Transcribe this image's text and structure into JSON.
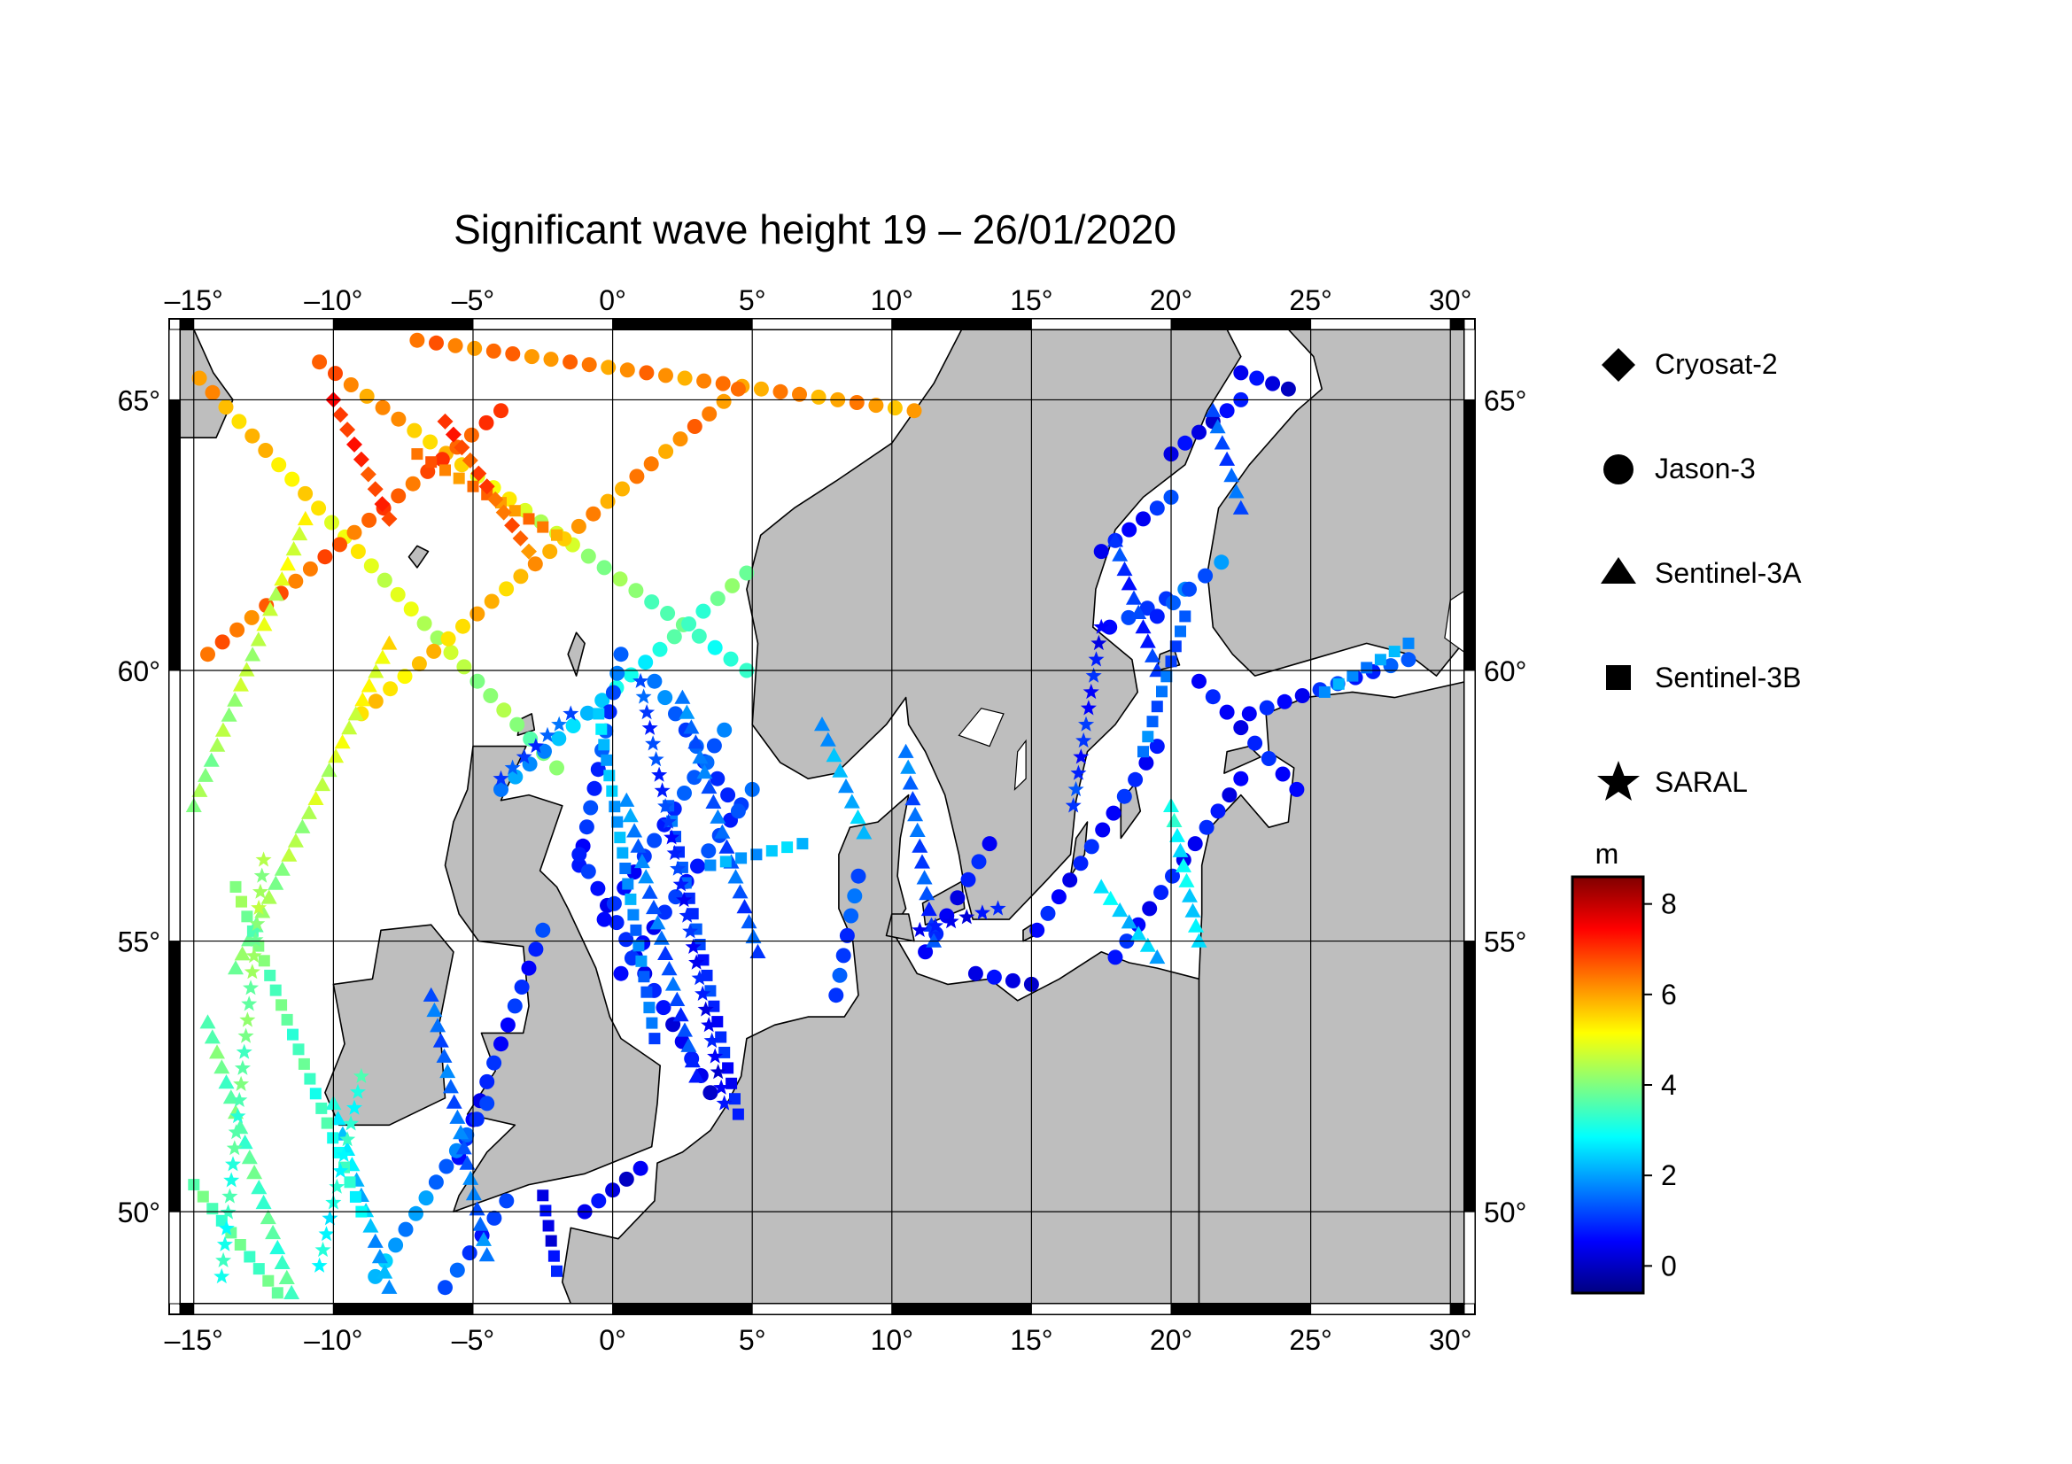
{
  "title": "Significant wave height 19 – 26/01/2020",
  "map": {
    "lon_range": [
      -15.5,
      30.5
    ],
    "lat_range": [
      48.3,
      66.3
    ],
    "lon_ticks": [
      "–15°",
      "–10°",
      "–5°",
      "0°",
      "5°",
      "10°",
      "15°",
      "20°",
      "25°",
      "30°"
    ],
    "lat_ticks": [
      "50°",
      "55°",
      "60°",
      "65°"
    ],
    "ocean_color": "#ffffff",
    "land_color": "#bebebe",
    "graticule": true
  },
  "legend": {
    "items": [
      {
        "label": "Cryosat-2",
        "icon": "diamond"
      },
      {
        "label": "Jason-3",
        "icon": "circle"
      },
      {
        "label": "Sentinel-3A",
        "icon": "triangle"
      },
      {
        "label": "Sentinel-3B",
        "icon": "square"
      },
      {
        "label": "SARAL",
        "icon": "star"
      }
    ]
  },
  "colorbar": {
    "unit": "m",
    "range": [
      -0.6,
      8.6
    ],
    "ticks": [
      "8",
      "6",
      "4",
      "2",
      "0"
    ],
    "colormap": [
      "#000080",
      "#0000ff",
      "#0080ff",
      "#00ffff",
      "#80ff80",
      "#ffff00",
      "#ff8000",
      "#ff0000",
      "#800000"
    ]
  },
  "chart_data": {
    "type": "scatter",
    "x_field": "longitude",
    "y_field": "latitude",
    "value_field": "significant_wave_height_m",
    "tracks": [
      {
        "satellite": "Jason-3",
        "from": [
          -14.8,
          65.4
        ],
        "to": [
          -2.0,
          58.2
        ],
        "hs_start": 6.0,
        "hs_end": 3.8
      },
      {
        "satellite": "Jason-3",
        "from": [
          -10.5,
          65.7
        ],
        "to": [
          4.8,
          60.0
        ],
        "hs_start": 6.6,
        "hs_end": 3.0
      },
      {
        "satellite": "Jason-3",
        "from": [
          -7.0,
          66.1
        ],
        "to": [
          10.8,
          64.8
        ],
        "hs_start": 6.4,
        "hs_end": 6.0
      },
      {
        "satellite": "Jason-3",
        "from": [
          -14.5,
          60.3
        ],
        "to": [
          -4.0,
          64.8
        ],
        "hs_start": 6.4,
        "hs_end": 6.8
      },
      {
        "satellite": "Jason-3",
        "from": [
          -9.0,
          59.2
        ],
        "to": [
          4.5,
          65.2
        ],
        "hs_start": 5.4,
        "hs_end": 6.4
      },
      {
        "satellite": "Jason-3",
        "from": [
          -4.0,
          57.8
        ],
        "to": [
          4.8,
          61.8
        ],
        "hs_start": 1.6,
        "hs_end": 4.0
      },
      {
        "satellite": "Jason-3",
        "from": [
          0.3,
          60.3
        ],
        "to": [
          -1.2,
          56.4
        ],
        "hs_start": 1.4,
        "hs_end": 0.8
      },
      {
        "satellite": "Jason-3",
        "from": [
          -1.2,
          56.6
        ],
        "to": [
          3.5,
          52.2
        ],
        "hs_start": 0.8,
        "hs_end": 0.4
      },
      {
        "satellite": "Jason-3",
        "from": [
          0.3,
          54.4
        ],
        "to": [
          5.0,
          57.8
        ],
        "hs_start": 0.6,
        "hs_end": 1.2
      },
      {
        "satellite": "Jason-3",
        "from": [
          -0.3,
          55.4
        ],
        "to": [
          4.0,
          58.9
        ],
        "hs_start": 0.6,
        "hs_end": 1.4
      },
      {
        "satellite": "Jason-3",
        "from": [
          1.5,
          59.8
        ],
        "to": [
          4.5,
          57.4
        ],
        "hs_start": 1.6,
        "hs_end": 1.0
      },
      {
        "satellite": "Jason-3",
        "from": [
          -5.5,
          51.0
        ],
        "to": [
          -2.5,
          55.2
        ],
        "hs_start": 0.6,
        "hs_end": 0.9
      },
      {
        "satellite": "Jason-3",
        "from": [
          -8.5,
          48.8
        ],
        "to": [
          -4.5,
          52.0
        ],
        "hs_start": 2.2,
        "hs_end": 1.2
      },
      {
        "satellite": "Jason-3",
        "from": [
          -6.0,
          48.6
        ],
        "to": [
          -3.8,
          50.2
        ],
        "hs_start": 1.2,
        "hs_end": 0.9
      },
      {
        "satellite": "Jason-3",
        "from": [
          -1.0,
          50.0
        ],
        "to": [
          1.0,
          50.8
        ],
        "hs_start": 0.4,
        "hs_end": 0.3
      },
      {
        "satellite": "Jason-3",
        "from": [
          8.0,
          54.0
        ],
        "to": [
          8.8,
          56.2
        ],
        "hs_start": 1.0,
        "hs_end": 1.4
      },
      {
        "satellite": "Jason-3",
        "from": [
          11.2,
          54.8
        ],
        "to": [
          13.5,
          56.8
        ],
        "hs_start": 0.5,
        "hs_end": 0.7
      },
      {
        "satellite": "Jason-3",
        "from": [
          13.0,
          54.4
        ],
        "to": [
          15.0,
          54.2
        ],
        "hs_start": 0.3,
        "hs_end": 0.4
      },
      {
        "satellite": "Jason-3",
        "from": [
          15.2,
          55.2
        ],
        "to": [
          19.5,
          58.6
        ],
        "hs_start": 0.6,
        "hs_end": 0.8
      },
      {
        "satellite": "Jason-3",
        "from": [
          18.0,
          54.7
        ],
        "to": [
          22.5,
          58.0
        ],
        "hs_start": 0.7,
        "hs_end": 0.6
      },
      {
        "satellite": "Jason-3",
        "from": [
          17.8,
          60.8
        ],
        "to": [
          20.5,
          61.5
        ],
        "hs_start": 0.6,
        "hs_end": 1.6
      },
      {
        "satellite": "Jason-3",
        "from": [
          17.5,
          62.2
        ],
        "to": [
          20.0,
          63.2
        ],
        "hs_start": 0.4,
        "hs_end": 1.0
      },
      {
        "satellite": "Jason-3",
        "from": [
          19.5,
          61.0
        ],
        "to": [
          21.8,
          62.0
        ],
        "hs_start": 0.8,
        "hs_end": 1.8
      },
      {
        "satellite": "Jason-3",
        "from": [
          20.0,
          64.0
        ],
        "to": [
          22.5,
          65.0
        ],
        "hs_start": 0.3,
        "hs_end": 0.5
      },
      {
        "satellite": "Jason-3",
        "from": [
          22.5,
          65.5
        ],
        "to": [
          24.2,
          65.2
        ],
        "hs_start": 0.4,
        "hs_end": 0.3
      },
      {
        "satellite": "Jason-3",
        "from": [
          22.8,
          59.2
        ],
        "to": [
          28.5,
          60.2
        ],
        "hs_start": 0.5,
        "hs_end": 1.2
      },
      {
        "satellite": "Jason-3",
        "from": [
          21.0,
          59.8
        ],
        "to": [
          24.5,
          57.8
        ],
        "hs_start": 0.5,
        "hs_end": 0.8
      },
      {
        "satellite": "Sentinel-3A",
        "from": [
          -15.0,
          57.5
        ],
        "to": [
          -11.0,
          62.8
        ],
        "hs_start": 4.0,
        "hs_end": 5.0
      },
      {
        "satellite": "Sentinel-3A",
        "from": [
          -13.5,
          54.5
        ],
        "to": [
          -8.0,
          60.5
        ],
        "hs_start": 3.8,
        "hs_end": 5.2
      },
      {
        "satellite": "Sentinel-3A",
        "from": [
          -11.5,
          48.5
        ],
        "to": [
          -14.5,
          53.5
        ],
        "hs_start": 3.4,
        "hs_end": 3.8
      },
      {
        "satellite": "Sentinel-3A",
        "from": [
          -8.0,
          48.6
        ],
        "to": [
          -10.0,
          52.0
        ],
        "hs_start": 1.8,
        "hs_end": 2.8
      },
      {
        "satellite": "Sentinel-3A",
        "from": [
          -4.5,
          49.2
        ],
        "to": [
          -6.5,
          54.0
        ],
        "hs_start": 1.6,
        "hs_end": 1.4
      },
      {
        "satellite": "Sentinel-3A",
        "from": [
          0.5,
          57.6
        ],
        "to": [
          3.0,
          52.5
        ],
        "hs_start": 1.8,
        "hs_end": 1.0
      },
      {
        "satellite": "Sentinel-3A",
        "from": [
          2.5,
          59.5
        ],
        "to": [
          5.2,
          54.8
        ],
        "hs_start": 1.6,
        "hs_end": 1.2
      },
      {
        "satellite": "Sentinel-3A",
        "from": [
          9.0,
          57.0
        ],
        "to": [
          7.5,
          59.0
        ],
        "hs_start": 2.2,
        "hs_end": 2.0
      },
      {
        "satellite": "Sentinel-3A",
        "from": [
          10.5,
          58.5
        ],
        "to": [
          11.5,
          55.0
        ],
        "hs_start": 1.6,
        "hs_end": 1.0
      },
      {
        "satellite": "Sentinel-3A",
        "from": [
          17.5,
          56.0
        ],
        "to": [
          19.5,
          54.7
        ],
        "hs_start": 2.6,
        "hs_end": 2.2
      },
      {
        "satellite": "Sentinel-3A",
        "from": [
          20.0,
          57.5
        ],
        "to": [
          21.0,
          55.0
        ],
        "hs_start": 3.0,
        "hs_end": 2.4
      },
      {
        "satellite": "Sentinel-3A",
        "from": [
          21.5,
          64.8
        ],
        "to": [
          22.5,
          63.0
        ],
        "hs_start": 1.2,
        "hs_end": 1.4
      },
      {
        "satellite": "Sentinel-3A",
        "from": [
          18.0,
          62.4
        ],
        "to": [
          19.5,
          60.0
        ],
        "hs_start": 1.0,
        "hs_end": 0.9
      },
      {
        "satellite": "Sentinel-3B",
        "from": [
          -7.0,
          64.0
        ],
        "to": [
          -2.0,
          62.5
        ],
        "hs_start": 6.4,
        "hs_end": 6.2
      },
      {
        "satellite": "Sentinel-3B",
        "from": [
          -15.0,
          50.5
        ],
        "to": [
          -12.0,
          48.5
        ],
        "hs_start": 3.6,
        "hs_end": 3.6
      },
      {
        "satellite": "Sentinel-3B",
        "from": [
          -13.5,
          56.0
        ],
        "to": [
          -9.0,
          50.0
        ],
        "hs_start": 4.0,
        "hs_end": 3.0
      },
      {
        "satellite": "Sentinel-3B",
        "from": [
          -0.5,
          59.2
        ],
        "to": [
          1.5,
          53.2
        ],
        "hs_start": 2.4,
        "hs_end": 1.4
      },
      {
        "satellite": "Sentinel-3B",
        "from": [
          2.0,
          57.5
        ],
        "to": [
          4.5,
          51.8
        ],
        "hs_start": 1.4,
        "hs_end": 0.6
      },
      {
        "satellite": "Sentinel-3B",
        "from": [
          3.5,
          56.4
        ],
        "to": [
          6.8,
          56.8
        ],
        "hs_start": 1.8,
        "hs_end": 2.4
      },
      {
        "satellite": "Sentinel-3B",
        "from": [
          -2.5,
          50.3
        ],
        "to": [
          -2.0,
          48.9
        ],
        "hs_start": 0.3,
        "hs_end": 0.6
      },
      {
        "satellite": "Sentinel-3B",
        "from": [
          19.0,
          58.5
        ],
        "to": [
          20.5,
          61.0
        ],
        "hs_start": 1.6,
        "hs_end": 1.2
      },
      {
        "satellite": "Sentinel-3B",
        "from": [
          25.5,
          59.6
        ],
        "to": [
          28.5,
          60.5
        ],
        "hs_start": 1.8,
        "hs_end": 2.0
      },
      {
        "satellite": "SARAL",
        "from": [
          -14.0,
          48.8
        ],
        "to": [
          -12.5,
          56.5
        ],
        "hs_start": 3.0,
        "hs_end": 4.4
      },
      {
        "satellite": "SARAL",
        "from": [
          -10.5,
          49.0
        ],
        "to": [
          -9.0,
          52.5
        ],
        "hs_start": 2.8,
        "hs_end": 3.2
      },
      {
        "satellite": "SARAL",
        "from": [
          -4.0,
          58.0
        ],
        "to": [
          -1.5,
          59.2
        ],
        "hs_start": 1.0,
        "hs_end": 1.4
      },
      {
        "satellite": "SARAL",
        "from": [
          1.0,
          59.8
        ],
        "to": [
          4.0,
          52.0
        ],
        "hs_start": 1.2,
        "hs_end": 0.4
      },
      {
        "satellite": "SARAL",
        "from": [
          11.0,
          55.2
        ],
        "to": [
          13.8,
          55.6
        ],
        "hs_start": 0.4,
        "hs_end": 0.6
      },
      {
        "satellite": "SARAL",
        "from": [
          16.5,
          57.5
        ],
        "to": [
          17.5,
          60.8
        ],
        "hs_start": 1.0,
        "hs_end": 0.6
      },
      {
        "satellite": "Cryosat-2",
        "from": [
          -6.0,
          64.6
        ],
        "to": [
          -3.0,
          62.2
        ],
        "hs_start": 7.0,
        "hs_end": 6.4
      },
      {
        "satellite": "Cryosat-2",
        "from": [
          -8.0,
          62.8
        ],
        "to": [
          -10.0,
          65.0
        ],
        "hs_start": 6.8,
        "hs_end": 7.2
      }
    ]
  }
}
